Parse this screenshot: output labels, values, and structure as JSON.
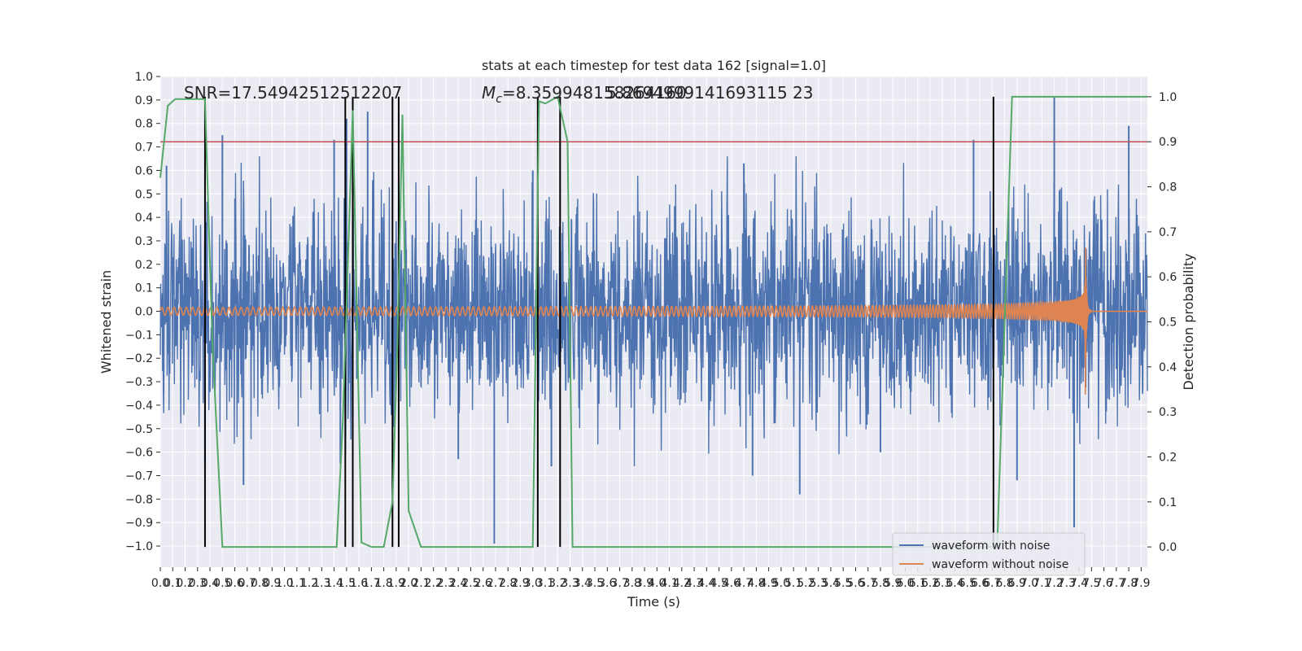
{
  "chart_data": {
    "type": "line",
    "title": "stats at each timestep for test data 162 [signal=1.0]",
    "xlabel": "Time (s)",
    "ylabel": "Whitened strain",
    "y2label": "Detection probability",
    "xlim": [
      0.0,
      7.95
    ],
    "ylim": [
      -1.09,
      1.0
    ],
    "y2lim": [
      -0.045,
      1.045
    ],
    "grid": true,
    "legend_position": "lower-right",
    "x_ticks": [
      0.0,
      0.1,
      0.2,
      0.3,
      0.4,
      0.5,
      0.6,
      0.7,
      0.8,
      0.9,
      1.0,
      1.1,
      1.2,
      1.3,
      1.4,
      1.5,
      1.6,
      1.7,
      1.8,
      1.9,
      2.0,
      2.1,
      2.2,
      2.3,
      2.4,
      2.5,
      2.6,
      2.7,
      2.8,
      2.9,
      3.0,
      3.1,
      3.2,
      3.3,
      3.4,
      3.5,
      3.6,
      3.7,
      3.8,
      3.9,
      4.0,
      4.1,
      4.2,
      4.3,
      4.4,
      4.5,
      4.6,
      4.7,
      4.8,
      4.9,
      5.0,
      5.1,
      5.2,
      5.3,
      5.4,
      5.5,
      5.6,
      5.7,
      5.8,
      5.9,
      6.0,
      6.1,
      6.2,
      6.3,
      6.4,
      6.5,
      6.6,
      6.7,
      6.8,
      6.9,
      7.0,
      7.1,
      7.2,
      7.3,
      7.4,
      7.5,
      7.6,
      7.7,
      7.8,
      7.9
    ],
    "y_ticks": [
      -1.0,
      -0.9,
      -0.8,
      -0.7,
      -0.6,
      -0.5,
      -0.4,
      -0.3,
      -0.2,
      -0.1,
      0.0,
      0.1,
      0.2,
      0.3,
      0.4,
      0.5,
      0.6,
      0.7,
      0.8,
      0.9,
      1.0
    ],
    "y2_ticks": [
      0.0,
      0.1,
      0.2,
      0.3,
      0.4,
      0.5,
      0.6,
      0.7,
      0.8,
      0.9,
      1.0
    ],
    "threshold": {
      "value": 0.9,
      "axis": "right",
      "color": "#c44e52"
    },
    "annotations": {
      "snr": "SNR=17.54942512512207",
      "mc_symbol": "M",
      "mc_sub": "c",
      "mc_value": "=8.359948158264160",
      "overlap": "5.8694999141693115 23"
    },
    "series": [
      {
        "name": "waveform with noise",
        "color": "#4c72b0",
        "axis": "left",
        "kind": "noise",
        "amplitude": 0.3,
        "spikes": [
          {
            "x": 0.05,
            "y": 0.62
          },
          {
            "x": 0.5,
            "y": 0.75
          },
          {
            "x": 1.4,
            "y": 0.73
          },
          {
            "x": 1.5,
            "y": 0.82
          },
          {
            "x": 1.67,
            "y": 0.85
          },
          {
            "x": 1.92,
            "y": 0.84
          },
          {
            "x": 3.0,
            "y": 0.6
          },
          {
            "x": 4.7,
            "y": 0.63
          },
          {
            "x": 6.55,
            "y": 0.73
          },
          {
            "x": 7.2,
            "y": 0.91
          },
          {
            "x": 7.8,
            "y": 0.79
          },
          {
            "x": 0.67,
            "y": -0.74
          },
          {
            "x": 2.69,
            "y": -0.99
          },
          {
            "x": 3.15,
            "y": -0.66
          },
          {
            "x": 5.15,
            "y": -0.78
          },
          {
            "x": 4.77,
            "y": -0.7
          },
          {
            "x": 6.9,
            "y": -0.72
          },
          {
            "x": 7.36,
            "y": -0.92
          },
          {
            "x": 0.36,
            "y": -0.65
          },
          {
            "x": 1.45,
            "y": -0.65
          },
          {
            "x": 2.4,
            "y": -0.63
          },
          {
            "x": 5.8,
            "y": -0.6
          }
        ]
      },
      {
        "name": "waveform without noise",
        "color": "#dd8452",
        "axis": "left",
        "kind": "chirp",
        "merger_time": 7.45,
        "initial_frequency_hz": 20,
        "initial_amplitude": 0.017,
        "peak_amplitude": 0.36
      },
      {
        "name": "detection probability",
        "color": "#55a868",
        "axis": "right",
        "x": [
          0.0,
          0.06,
          0.12,
          0.24,
          0.36,
          0.42,
          0.5,
          1.0,
          1.42,
          1.47,
          1.55,
          1.62,
          1.7,
          1.8,
          1.87,
          1.91,
          1.95,
          2.0,
          2.1,
          2.3,
          2.5,
          3.0,
          3.05,
          3.1,
          3.2,
          3.28,
          3.32,
          4.0,
          6.0,
          6.7,
          6.74,
          6.86,
          7.95
        ],
        "y": [
          0.82,
          0.98,
          0.995,
          0.995,
          0.995,
          0.45,
          0.0,
          0.0,
          0.0,
          0.28,
          0.97,
          0.01,
          0.0,
          0.0,
          0.1,
          0.45,
          0.96,
          0.08,
          0.0,
          0.0,
          0.0,
          0.0,
          0.99,
          0.985,
          1.0,
          0.9,
          0.0,
          0.0,
          0.0,
          0.0,
          0.0,
          1.0,
          1.0
        ]
      }
    ],
    "vertical_lines": {
      "color": "#000000",
      "x": [
        0.36,
        1.49,
        1.55,
        1.87,
        1.92,
        3.04,
        3.22,
        6.71
      ],
      "y2_from": 0.0,
      "y2_to": 1.0
    }
  }
}
